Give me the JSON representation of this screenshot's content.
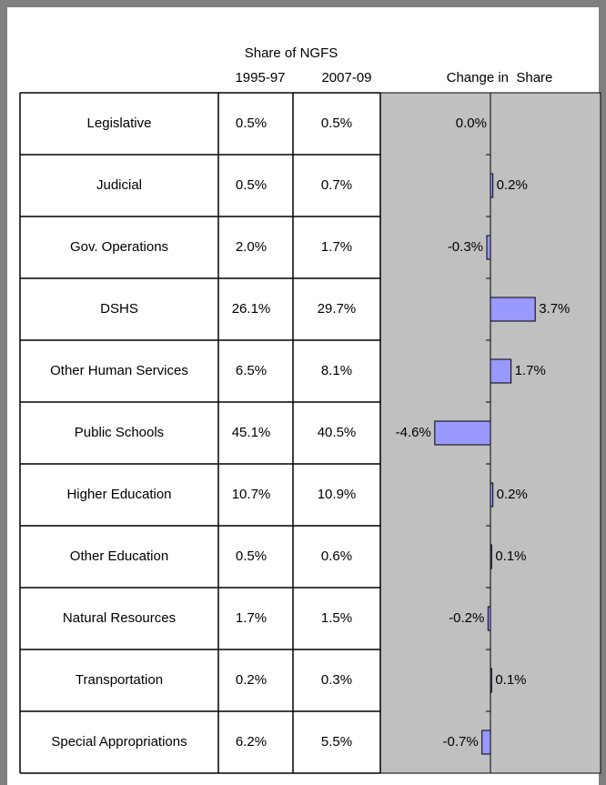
{
  "table": {
    "group_header": "Share of NGFS",
    "columns": [
      "1995-97",
      "2007-09"
    ],
    "rows": [
      [
        "Legislative",
        "0.5%",
        "0.5%"
      ],
      [
        "Judicial",
        "0.5%",
        "0.7%"
      ],
      [
        "Gov. Operations",
        "2.0%",
        "1.7%"
      ],
      [
        "DSHS",
        "26.1%",
        "29.7%"
      ],
      [
        "Other Human Services",
        "6.5%",
        "8.1%"
      ],
      [
        "Public Schools",
        "45.1%",
        "40.5%"
      ],
      [
        "Higher Education",
        "10.7%",
        "10.9%"
      ],
      [
        "Other Education",
        "0.5%",
        "0.6%"
      ],
      [
        "Natural Resources",
        "1.7%",
        "1.5%"
      ],
      [
        "Transportation",
        "0.2%",
        "0.3%"
      ],
      [
        "Special Appropriations",
        "6.2%",
        "5.5%"
      ]
    ]
  },
  "chart_data": {
    "type": "bar",
    "orientation": "horizontal",
    "title": "Change in  Share",
    "values": [
      0.0,
      0.2,
      -0.3,
      3.7,
      1.7,
      -4.6,
      0.2,
      0.1,
      -0.2,
      0.1,
      -0.7
    ],
    "value_labels": [
      "0.0%",
      "0.2%",
      "-0.3%",
      "3.7%",
      "1.7%",
      "-4.6%",
      "0.2%",
      "0.1%",
      "-0.2%",
      "0.1%",
      "-0.7%"
    ],
    "color": "#9999ff",
    "xlim": [
      -9.1,
      9.1
    ]
  }
}
